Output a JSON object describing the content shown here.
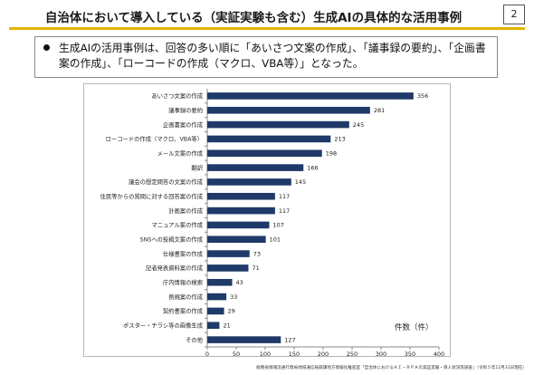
{
  "slide": {
    "title": "自治体において導入している（実証実験も含む）生成AIの具体的な活用事例",
    "page_number": "2",
    "summary": "生成AIの活用事例は、回答の多い順に「あいさつ文案の作成」、「議事録の要約」、「企画書案の作成」、「ローコードの作成（マクロ、VBA等）」となった。",
    "unit_label": "件数（件）",
    "source": "総務省情報流通行政局地域通信振興課地方情報化推進室「自治体におけるＡＩ・ＲＰＡの実証実験・導入状況等調査」（令和５年12月31日現在）",
    "accent_color": "#e4b400"
  },
  "chart_data": {
    "type": "bar",
    "orientation": "horizontal",
    "categories": [
      "あいさつ文案の作成",
      "議事録の要約",
      "企画書案の作成",
      "ローコードの作成（マクロ、VBA等）",
      "メール文案の作成",
      "翻訳",
      "議会の想定問答の文案の作成",
      "住民等からの質問に対する回答案の作成",
      "計画案の作成",
      "マニュアル案の作成",
      "SNSへの投稿文案の作成",
      "仕様書案の作成",
      "記者発表資料案の作成",
      "庁内情報の検索",
      "例規案の作成",
      "契約書案の作成",
      "ポスター・チラシ等の画像生成",
      "その他"
    ],
    "values": [
      356,
      281,
      245,
      213,
      198,
      166,
      145,
      117,
      117,
      107,
      101,
      73,
      71,
      43,
      33,
      29,
      21,
      127
    ],
    "xlim": [
      0,
      400
    ],
    "xticks": [
      0,
      50,
      100,
      150,
      200,
      250,
      300,
      350,
      400
    ],
    "bar_color": "#1f3a68",
    "grid": false,
    "data_labels": true
  }
}
